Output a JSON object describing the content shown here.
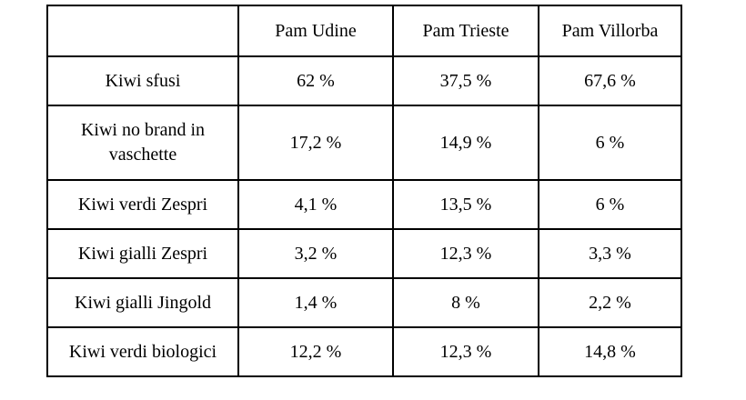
{
  "table": {
    "header": {
      "corner": "",
      "columns": [
        "Pam Udine",
        "Pam Trieste",
        "Pam Villorba"
      ]
    },
    "rows": [
      {
        "label": "Kiwi sfusi",
        "values": [
          "62 %",
          "37,5 %",
          "67,6 %"
        ]
      },
      {
        "label": "Kiwi no brand in vaschette",
        "values": [
          "17,2 %",
          "14,9 %",
          "6 %"
        ]
      },
      {
        "label": "Kiwi verdi Zespri",
        "values": [
          "4,1 %",
          "13,5 %",
          "6 %"
        ]
      },
      {
        "label": "Kiwi gialli Zespri",
        "values": [
          "3,2 %",
          "12,3 %",
          "3,3 %"
        ]
      },
      {
        "label": "Kiwi gialli Jingold",
        "values": [
          "1,4 %",
          "8 %",
          "2,2 %"
        ]
      },
      {
        "label": "Kiwi verdi biologici",
        "values": [
          "12,2 %",
          "12,3 %",
          "14,8 %"
        ]
      }
    ]
  }
}
